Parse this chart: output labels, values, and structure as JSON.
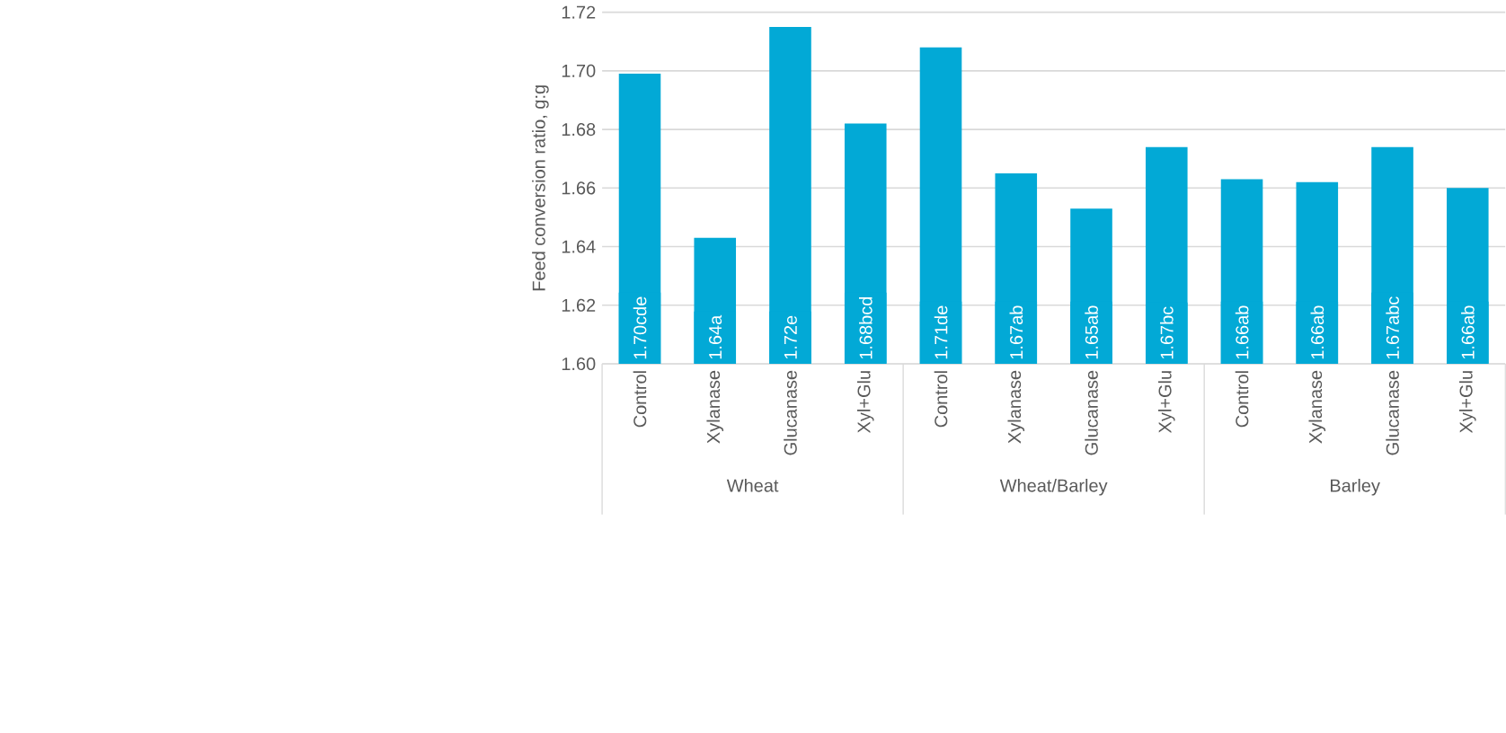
{
  "chart_data": {
    "type": "bar",
    "ylabel": "Feed conversion ratio, g:g",
    "categories": [
      "Control",
      "Xylanase",
      "Glucanase",
      "Xyl+Glu",
      "Control",
      "Xylanase",
      "Glucanase",
      "Xyl+Glu",
      "Control",
      "Xylanase",
      "Glucanase",
      "Xyl+Glu"
    ],
    "values": [
      1.699,
      1.643,
      1.715,
      1.682,
      1.708,
      1.665,
      1.653,
      1.674,
      1.663,
      1.662,
      1.674,
      1.66
    ],
    "value_labels": [
      "1.70cde",
      "1.64a",
      "1.72e",
      "1.68bcd",
      "1.71de",
      "1.67ab",
      "1.65ab",
      "1.67bc",
      "1.66ab",
      "1.66ab",
      "1.67abc",
      "1.66ab"
    ],
    "color": "#02a9d6",
    "ylim": [
      1.6,
      1.72
    ],
    "yticks": [
      "1.60",
      "1.62",
      "1.64",
      "1.66",
      "1.68",
      "1.70",
      "1.72"
    ],
    "grid": "y",
    "annotations": [
      "Wheat",
      "Wheat/Barley",
      "Barley"
    ]
  }
}
